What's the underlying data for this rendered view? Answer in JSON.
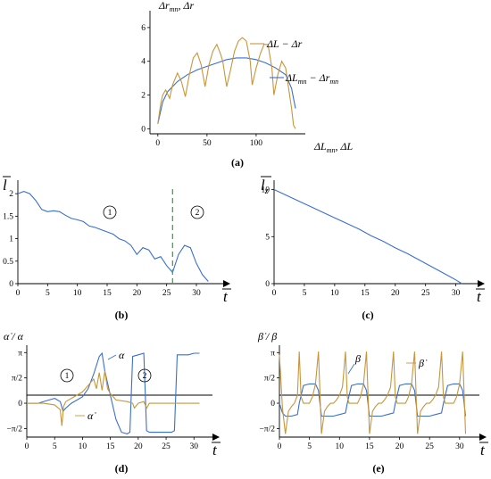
{
  "colors": {
    "blue": "#3a6fd0",
    "orange": "#c8963a",
    "green": "#3aaa4a"
  },
  "chart_data": [
    {
      "id": "a",
      "type": "line",
      "caption": "(a)",
      "ylabel": "Δr_mn, Δr",
      "xlabel": "ΔL_mn, ΔL",
      "xlim": [
        -8,
        150
      ],
      "ylim": [
        -0.3,
        7
      ],
      "xticks": [
        0,
        50,
        100
      ],
      "yticks": [
        0,
        2,
        4,
        6
      ],
      "series": [
        {
          "name": "ΔL − Δr",
          "color": "orange",
          "x": [
            0,
            3,
            5,
            8,
            12,
            15,
            20,
            24,
            28,
            32,
            36,
            40,
            44,
            48,
            52,
            56,
            60,
            64,
            66,
            70,
            74,
            78,
            82,
            86,
            90,
            94,
            96,
            100,
            104,
            108,
            112,
            116,
            118,
            122,
            126,
            130,
            134,
            136,
            138,
            140
          ],
          "y": [
            0.3,
            1.5,
            2.0,
            2.3,
            1.8,
            2.6,
            3.3,
            2.8,
            1.9,
            3.2,
            4.2,
            4.5,
            3.8,
            2.5,
            3.8,
            4.6,
            5.0,
            4.4,
            4.0,
            2.5,
            3.5,
            4.6,
            5.2,
            5.4,
            5.2,
            4.0,
            2.6,
            3.6,
            4.4,
            5.0,
            5.0,
            3.6,
            2.0,
            3.2,
            4.0,
            3.6,
            2.0,
            1.2,
            0.2,
            0.0
          ]
        },
        {
          "name": "ΔL_mn − Δr_mn",
          "color": "blue",
          "x": [
            0,
            5,
            10,
            20,
            30,
            40,
            50,
            60,
            70,
            80,
            90,
            100,
            110,
            120,
            130,
            136,
            140
          ],
          "y": [
            0.3,
            1.6,
            2.2,
            2.8,
            3.2,
            3.5,
            3.7,
            3.9,
            4.1,
            4.2,
            4.2,
            4.1,
            3.9,
            3.6,
            3.2,
            2.4,
            1.2
          ]
        }
      ]
    },
    {
      "id": "b",
      "type": "line",
      "caption": "(b)",
      "ylabel": "l̄",
      "xlabel": "t",
      "xlim": [
        0,
        33
      ],
      "ylim": [
        0,
        2.3
      ],
      "xticks": [
        0,
        5,
        10,
        15,
        20,
        25,
        30
      ],
      "yticks": [
        0,
        0.5,
        1,
        1.5,
        2
      ],
      "annotations": [
        "1",
        "2"
      ],
      "vline_t": 26,
      "series": [
        {
          "color": "blue",
          "x": [
            0,
            1,
            2,
            3,
            4,
            5,
            6,
            7,
            8,
            9,
            10,
            11,
            12,
            13,
            14,
            15,
            16,
            17,
            18,
            19,
            20,
            21,
            22,
            23,
            24,
            25,
            26,
            27,
            28,
            29,
            30,
            31,
            32
          ],
          "y": [
            2.0,
            2.05,
            2.0,
            1.85,
            1.65,
            1.6,
            1.62,
            1.6,
            1.52,
            1.45,
            1.42,
            1.38,
            1.28,
            1.25,
            1.2,
            1.15,
            1.1,
            1.0,
            0.95,
            0.85,
            0.65,
            0.8,
            0.75,
            0.55,
            0.6,
            0.4,
            0.25,
            0.65,
            0.85,
            0.8,
            0.45,
            0.2,
            0.05
          ]
        }
      ]
    },
    {
      "id": "c",
      "type": "line",
      "caption": "(c)",
      "ylabel": "l̄_z",
      "xlabel": "t",
      "xlim": [
        0,
        33
      ],
      "ylim": [
        0,
        11
      ],
      "xticks": [
        0,
        5,
        10,
        15,
        20,
        25,
        30
      ],
      "yticks": [
        0,
        5,
        10
      ],
      "series": [
        {
          "color": "blue",
          "x": [
            0,
            2,
            4,
            6,
            8,
            10,
            12,
            14,
            16,
            18,
            20,
            22,
            24,
            26,
            28,
            30,
            31
          ],
          "y": [
            10.0,
            9.4,
            8.8,
            8.2,
            7.6,
            7.0,
            6.4,
            5.8,
            5.1,
            4.5,
            3.8,
            3.2,
            2.5,
            1.8,
            1.1,
            0.4,
            0.0
          ]
        }
      ]
    },
    {
      "id": "d",
      "type": "line",
      "caption": "(d)",
      "ylabel": "α̇ / α",
      "xlabel": "t",
      "xlim": [
        0,
        33
      ],
      "ylim": [
        -2.1,
        3.6
      ],
      "xticks": [
        0,
        5,
        10,
        15,
        20,
        25,
        30
      ],
      "ytick_labels": [
        "π",
        "π/2",
        "0",
        "−π/2"
      ],
      "annotations": [
        "1",
        "2"
      ],
      "series": [
        {
          "name": "α",
          "color": "blue",
          "x": [
            0,
            2,
            4,
            5,
            6,
            6.5,
            7,
            8,
            10,
            11,
            12,
            13,
            13.5,
            14,
            15,
            16,
            17,
            18,
            18.5,
            19,
            20,
            21,
            21.5,
            22,
            23,
            24,
            25,
            26,
            26.5,
            27,
            28,
            29,
            30,
            31
          ],
          "y": [
            0,
            0,
            0.2,
            0.3,
            0.1,
            -0.5,
            -0.3,
            0,
            0.4,
            0.9,
            1.8,
            2.9,
            3.1,
            2.0,
            0.5,
            -1.0,
            -1.8,
            -1.9,
            -1.8,
            2.9,
            3.0,
            3.1,
            -1.7,
            -1.8,
            -1.8,
            -1.8,
            -1.8,
            -1.8,
            -1.7,
            3.0,
            3.0,
            3.0,
            3.1,
            3.1
          ]
        },
        {
          "name": "α̇",
          "color": "orange",
          "x": [
            0,
            3,
            5,
            6,
            6.3,
            6.6,
            7,
            8,
            10,
            11,
            12,
            12.5,
            13,
            13.5,
            14,
            14.5,
            15,
            16,
            18,
            19,
            19.3,
            20,
            21,
            21.5,
            22,
            24,
            26,
            28,
            31
          ],
          "y": [
            0,
            0,
            -0.1,
            -0.4,
            -1.4,
            -0.2,
            0.1,
            0.3,
            0.7,
            1.1,
            1.5,
            0.9,
            1.9,
            0.8,
            2.0,
            0.9,
            0.6,
            0.2,
            0.1,
            0,
            -0.3,
            0,
            0.1,
            -0.3,
            0,
            0,
            0,
            0,
            0
          ]
        }
      ]
    },
    {
      "id": "e",
      "type": "line",
      "caption": "(e)",
      "ylabel": "β̇ / β",
      "xlabel": "t",
      "xlim": [
        0,
        33
      ],
      "ylim": [
        -2.1,
        3.6
      ],
      "xticks": [
        0,
        5,
        10,
        15,
        20,
        25,
        30
      ],
      "ytick_labels": [
        "π",
        "π/2",
        "0",
        "−π/2"
      ],
      "series": [
        {
          "name": "β",
          "color": "blue",
          "x": [
            0,
            0.5,
            1,
            2,
            3,
            3.3,
            4,
            5,
            6,
            6.5,
            7,
            8,
            9,
            10,
            11,
            11.3,
            12,
            13,
            14,
            14.5,
            15,
            16,
            17,
            18,
            19,
            19.3,
            20,
            21,
            22,
            22.5,
            23,
            24,
            25,
            26,
            27,
            27.3,
            28,
            29,
            30,
            30.5,
            31
          ],
          "y": [
            0,
            -0.6,
            -0.8,
            -0.8,
            -0.7,
            0,
            1.1,
            1.2,
            1.2,
            0.8,
            -0.8,
            -0.8,
            -0.8,
            -0.7,
            -0.6,
            0,
            1.1,
            1.2,
            1.2,
            0.8,
            -0.8,
            -0.8,
            -0.8,
            -0.7,
            -0.6,
            0,
            1.1,
            1.2,
            1.2,
            0.8,
            -0.8,
            -0.8,
            -0.8,
            -0.7,
            -0.6,
            0,
            1.1,
            1.2,
            1.2,
            0.8,
            -0.8
          ]
        },
        {
          "name": "β̇",
          "color": "orange",
          "x": [
            0,
            0.5,
            1,
            1.5,
            2,
            2.5,
            3,
            3.3,
            3.6,
            4,
            5,
            5.5,
            6,
            6.5,
            7,
            7.5,
            8,
            8.5,
            9,
            9.5,
            10,
            10.5,
            11,
            11.3,
            11.6,
            12,
            13,
            13.5,
            14,
            14.5,
            15,
            15.5,
            16,
            16.5,
            17,
            17.5,
            18,
            18.5,
            19,
            19.3,
            19.6,
            20,
            21,
            21.5,
            22,
            22.5,
            23,
            23.5,
            24,
            24.5,
            25,
            25.5,
            26,
            26.5,
            27,
            27.3,
            27.6,
            28,
            29,
            29.5,
            30,
            30.5,
            31
          ],
          "y": [
            3.0,
            -0.3,
            -1.9,
            -0.5,
            -0.2,
            0,
            0.5,
            3.2,
            0.4,
            0,
            0,
            0.4,
            1.2,
            3.2,
            -1.9,
            -0.5,
            -0.2,
            0,
            0,
            0.2,
            0.5,
            1.0,
            3.2,
            0.4,
            0,
            0,
            0,
            0.4,
            1.2,
            3.2,
            -1.9,
            -0.5,
            -0.2,
            0,
            0,
            0.2,
            0.5,
            1.0,
            3.2,
            0.4,
            0,
            0,
            0,
            0.4,
            1.2,
            3.2,
            -1.9,
            -0.5,
            -0.2,
            0,
            0,
            0.2,
            0.5,
            1.0,
            3.2,
            0.4,
            0,
            0,
            0,
            0.4,
            1.2,
            3.2,
            -1.9
          ]
        }
      ]
    }
  ]
}
